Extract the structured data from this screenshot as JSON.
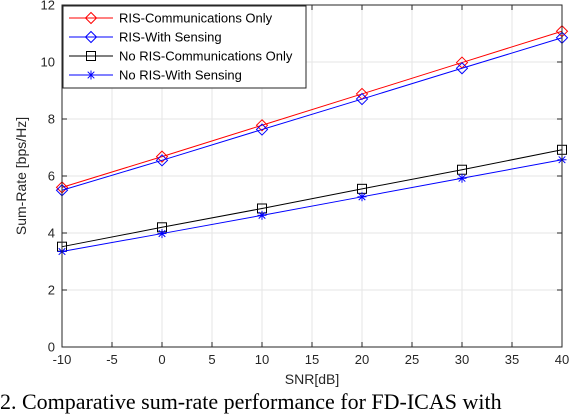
{
  "chart_data": {
    "type": "line",
    "xlabel": "SNR[dB]",
    "ylabel": "Sum-Rate [bps/Hz]",
    "xlim": [
      -10,
      40
    ],
    "ylim": [
      0,
      12
    ],
    "xticks": [
      "-10",
      "-5",
      "0",
      "5",
      "10",
      "15",
      "20",
      "25",
      "30",
      "35",
      "40"
    ],
    "yticks": [
      "0",
      "2",
      "4",
      "6",
      "8",
      "10",
      "12"
    ],
    "grid": true,
    "legend_position": "top-left",
    "x": [
      -10,
      0,
      10,
      20,
      30,
      40
    ],
    "series": [
      {
        "name": "RIS-Communications Only",
        "color": "#ff0000",
        "marker": "diamond",
        "values": [
          5.6,
          6.68,
          7.78,
          8.88,
          9.98,
          11.08
        ]
      },
      {
        "name": "RIS-With Sensing",
        "color": "#0000ff",
        "marker": "diamond",
        "values": [
          5.5,
          6.55,
          7.63,
          8.7,
          9.78,
          10.85
        ]
      },
      {
        "name": "No RIS-Communications Only",
        "color": "#000000",
        "marker": "square",
        "values": [
          3.52,
          4.2,
          4.86,
          5.55,
          6.22,
          6.92
        ]
      },
      {
        "name": "No RIS-With Sensing",
        "color": "#0000ff",
        "marker": "asterisk",
        "values": [
          3.35,
          3.98,
          4.62,
          5.27,
          5.92,
          6.57
        ]
      }
    ]
  },
  "caption": "2. Comparative sum-rate performance for FD-ICAS with"
}
